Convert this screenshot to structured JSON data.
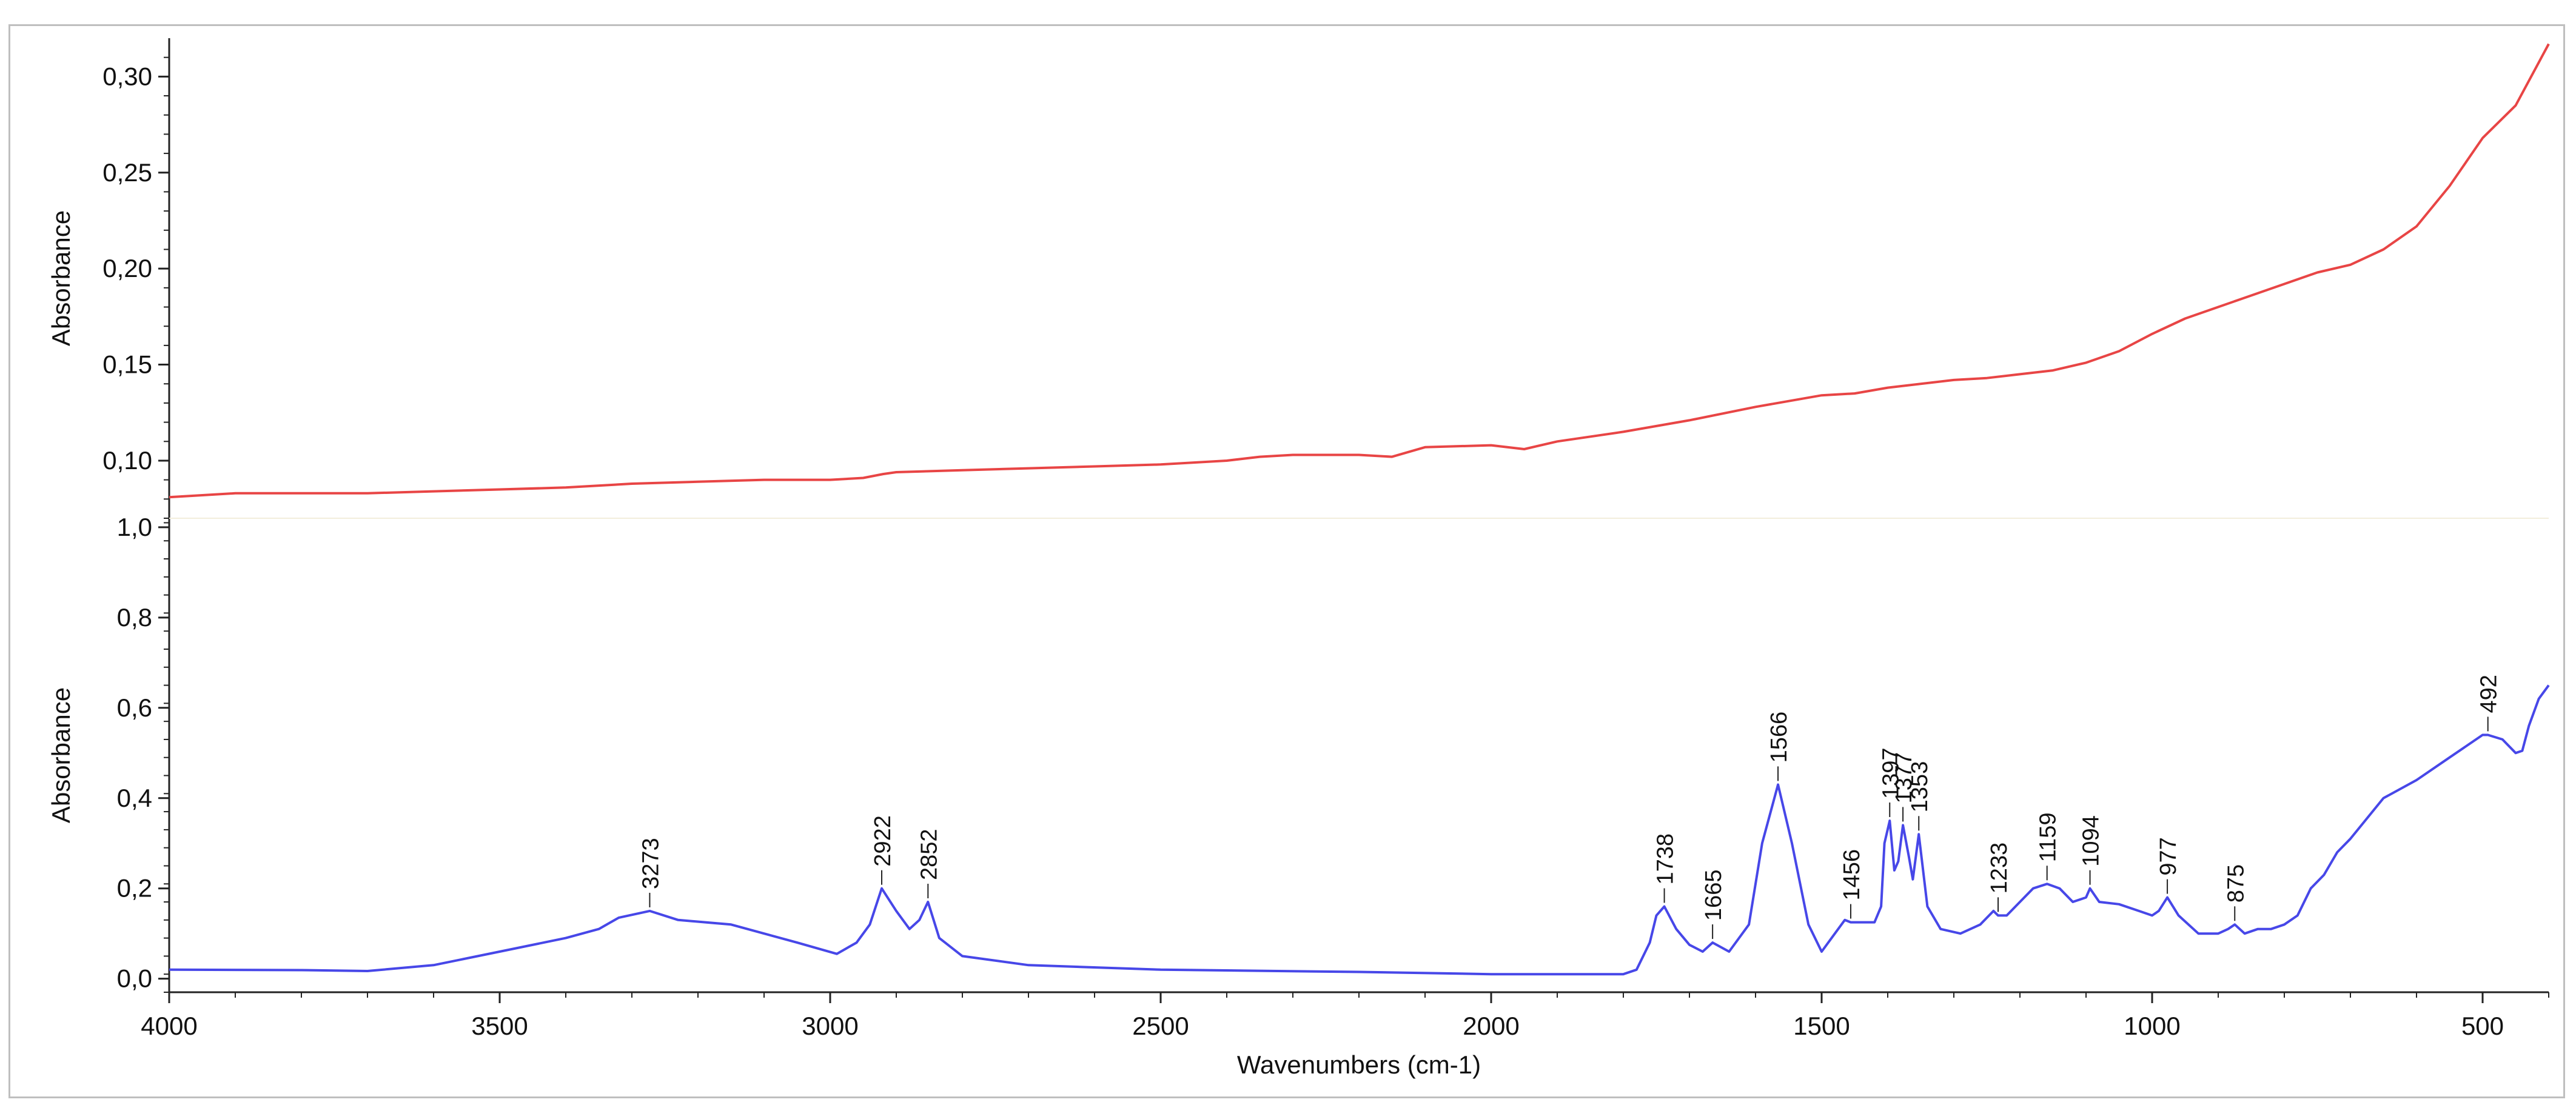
{
  "chart_data": [
    {
      "type": "line",
      "title": "",
      "xlabel": "",
      "ylabel": "Absorbance",
      "xlim": [
        4000,
        400
      ],
      "ylim": [
        0.07,
        0.32
      ],
      "yticks": [
        "0,30",
        "0,25",
        "0,20",
        "0,15",
        "0,10"
      ],
      "ytick_values": [
        0.3,
        0.25,
        0.2,
        0.15,
        0.1
      ],
      "grid": false,
      "legend": "none",
      "color": "#e84545",
      "series": [
        {
          "x": [
            4000,
            3900,
            3800,
            3700,
            3600,
            3500,
            3400,
            3300,
            3200,
            3100,
            3000,
            2950,
            2920,
            2900,
            2800,
            2700,
            2600,
            2500,
            2400,
            2350,
            2300,
            2200,
            2150,
            2100,
            2000,
            1950,
            1900,
            1800,
            1700,
            1600,
            1500,
            1450,
            1400,
            1300,
            1250,
            1200,
            1150,
            1100,
            1050,
            1000,
            950,
            900,
            850,
            800,
            750,
            700,
            650,
            600,
            550,
            500,
            450,
            400
          ],
          "y": [
            0.081,
            0.083,
            0.083,
            0.083,
            0.084,
            0.085,
            0.086,
            0.088,
            0.089,
            0.09,
            0.09,
            0.091,
            0.093,
            0.094,
            0.095,
            0.096,
            0.097,
            0.098,
            0.1,
            0.102,
            0.103,
            0.103,
            0.102,
            0.107,
            0.108,
            0.106,
            0.11,
            0.115,
            0.121,
            0.128,
            0.134,
            0.135,
            0.138,
            0.142,
            0.143,
            0.145,
            0.147,
            0.151,
            0.157,
            0.166,
            0.174,
            0.18,
            0.186,
            0.192,
            0.198,
            0.202,
            0.21,
            0.222,
            0.243,
            0.268,
            0.285,
            0.317
          ]
        }
      ]
    },
    {
      "type": "line",
      "title": "",
      "xlabel": "Wavenumbers (cm-1)",
      "ylabel": "Absorbance",
      "xlim": [
        4000,
        400
      ],
      "ylim": [
        -0.03,
        1.02
      ],
      "yticks": [
        "1,0",
        "0,8",
        "0,6",
        "0,4",
        "0,2",
        "0,0"
      ],
      "ytick_values": [
        1.0,
        0.8,
        0.6,
        0.4,
        0.2,
        0.0
      ],
      "xticks": [
        "4000",
        "3500",
        "3000",
        "2500",
        "2000",
        "1500",
        "1000",
        "500"
      ],
      "xtick_values": [
        4000,
        3500,
        3000,
        2500,
        2000,
        1500,
        1000,
        500
      ],
      "grid": false,
      "legend": "none",
      "color": "#4747e8",
      "series": [
        {
          "x": [
            4000,
            3800,
            3700,
            3600,
            3500,
            3400,
            3350,
            3320,
            3273,
            3230,
            3150,
            3050,
            2990,
            2960,
            2940,
            2922,
            2900,
            2880,
            2865,
            2852,
            2835,
            2800,
            2700,
            2500,
            2200,
            2000,
            1800,
            1780,
            1760,
            1750,
            1738,
            1720,
            1700,
            1680,
            1665,
            1640,
            1610,
            1590,
            1566,
            1545,
            1520,
            1500,
            1480,
            1465,
            1456,
            1440,
            1420,
            1410,
            1405,
            1397,
            1390,
            1384,
            1377,
            1368,
            1362,
            1353,
            1340,
            1320,
            1290,
            1260,
            1240,
            1233,
            1220,
            1200,
            1180,
            1159,
            1140,
            1120,
            1100,
            1094,
            1080,
            1050,
            1020,
            1000,
            990,
            977,
            960,
            930,
            900,
            885,
            875,
            860,
            840,
            820,
            800,
            780,
            760,
            740,
            720,
            700,
            650,
            600,
            550,
            520,
            500,
            492,
            470,
            450,
            440,
            430,
            415,
            400
          ],
          "y": [
            0.02,
            0.019,
            0.017,
            0.03,
            0.06,
            0.09,
            0.11,
            0.135,
            0.15,
            0.13,
            0.12,
            0.08,
            0.055,
            0.08,
            0.12,
            0.2,
            0.15,
            0.11,
            0.13,
            0.17,
            0.09,
            0.05,
            0.03,
            0.02,
            0.015,
            0.01,
            0.01,
            0.02,
            0.08,
            0.14,
            0.16,
            0.11,
            0.075,
            0.06,
            0.08,
            0.06,
            0.12,
            0.3,
            0.43,
            0.3,
            0.12,
            0.06,
            0.1,
            0.13,
            0.125,
            0.125,
            0.125,
            0.16,
            0.3,
            0.35,
            0.24,
            0.26,
            0.34,
            0.27,
            0.22,
            0.32,
            0.16,
            0.11,
            0.1,
            0.12,
            0.15,
            0.14,
            0.14,
            0.17,
            0.2,
            0.21,
            0.2,
            0.17,
            0.18,
            0.2,
            0.17,
            0.165,
            0.15,
            0.14,
            0.15,
            0.18,
            0.14,
            0.1,
            0.1,
            0.11,
            0.12,
            0.1,
            0.11,
            0.11,
            0.12,
            0.14,
            0.2,
            0.23,
            0.28,
            0.31,
            0.4,
            0.44,
            0.49,
            0.52,
            0.54,
            0.54,
            0.53,
            0.5,
            0.505,
            0.56,
            0.62,
            0.65
          ]
        }
      ],
      "annotations": [
        {
          "label": "3273",
          "x": 3273,
          "y": 0.15
        },
        {
          "label": "2922",
          "x": 2922,
          "y": 0.2
        },
        {
          "label": "2852",
          "x": 2852,
          "y": 0.17
        },
        {
          "label": "1738",
          "x": 1738,
          "y": 0.16
        },
        {
          "label": "1665",
          "x": 1665,
          "y": 0.08
        },
        {
          "label": "1566",
          "x": 1566,
          "y": 0.43
        },
        {
          "label": "1456",
          "x": 1456,
          "y": 0.125
        },
        {
          "label": "1397",
          "x": 1397,
          "y": 0.35
        },
        {
          "label": "1377",
          "x": 1377,
          "y": 0.34
        },
        {
          "label": "1353",
          "x": 1353,
          "y": 0.32
        },
        {
          "label": "1233",
          "x": 1233,
          "y": 0.14
        },
        {
          "label": "1159",
          "x": 1159,
          "y": 0.21
        },
        {
          "label": "1094",
          "x": 1094,
          "y": 0.2
        },
        {
          "label": "977",
          "x": 977,
          "y": 0.18
        },
        {
          "label": "875",
          "x": 875,
          "y": 0.12
        },
        {
          "label": "492",
          "x": 492,
          "y": 0.54
        }
      ]
    }
  ]
}
